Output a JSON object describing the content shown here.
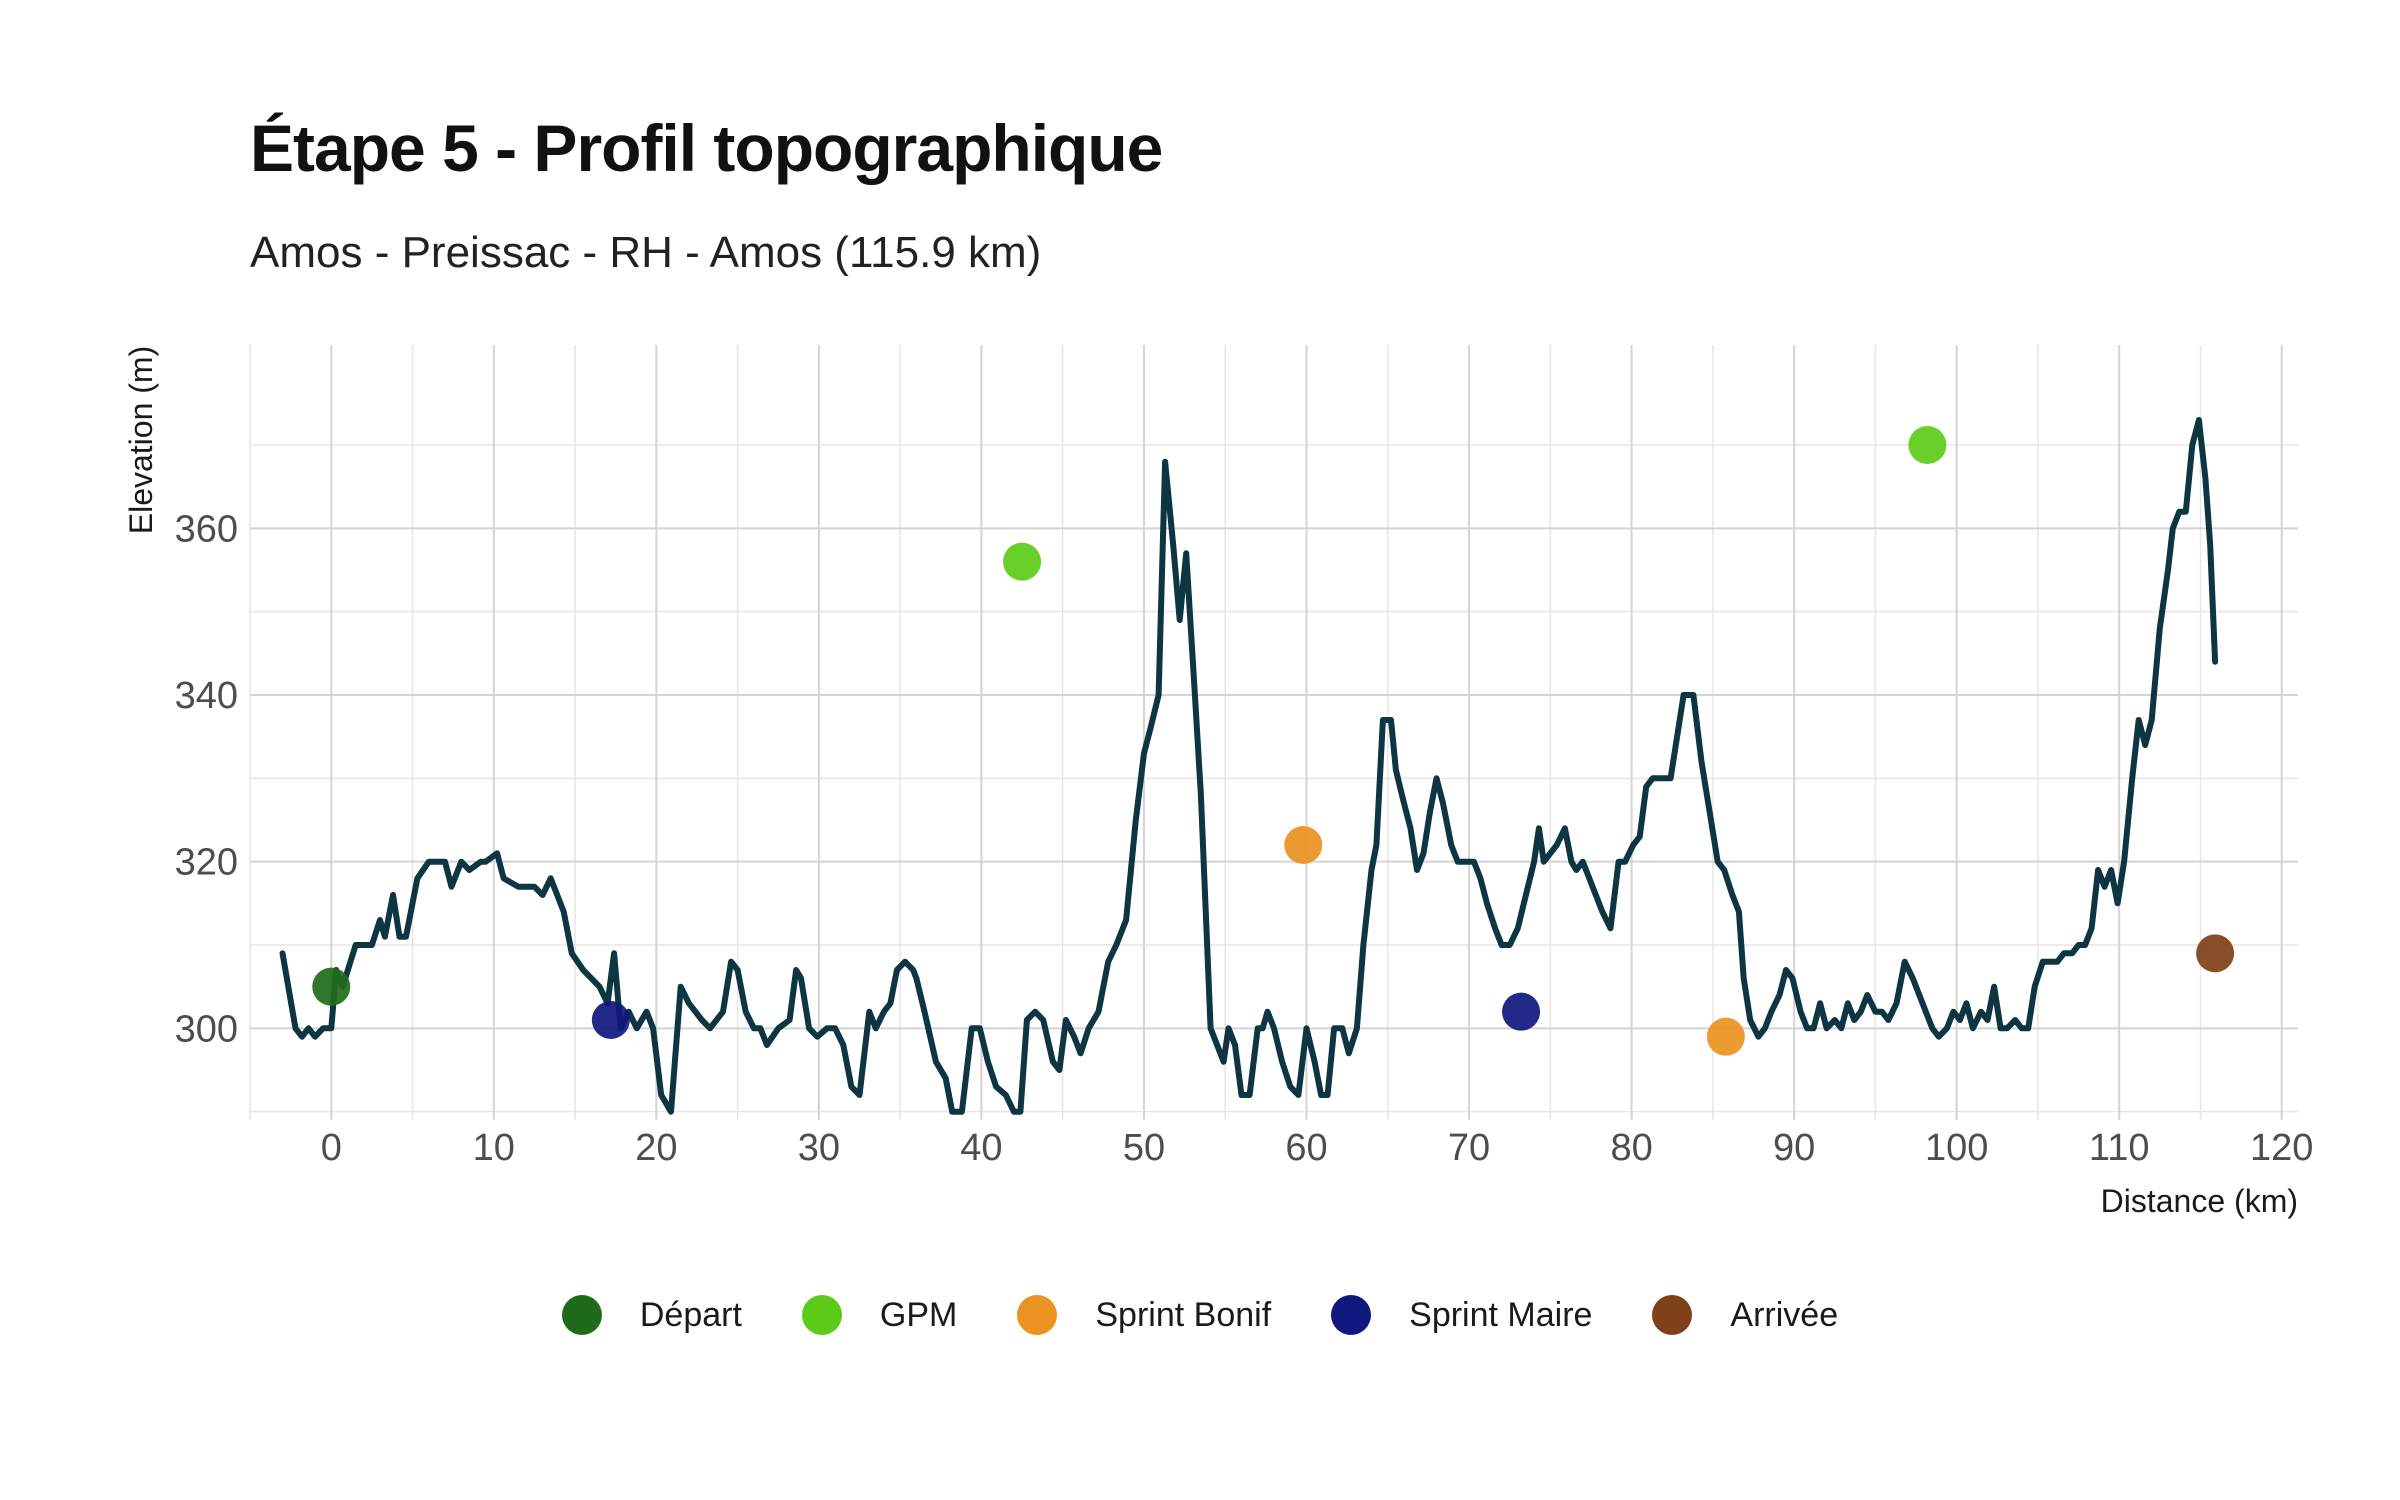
{
  "title": "Étape 5 - Profil topographique",
  "subtitle": "Amos - Preissac - RH - Amos (115.9 km)",
  "chart_data": {
    "type": "line",
    "xlabel": "Distance (km)",
    "ylabel": "Elevation (m)",
    "xlim": [
      -5,
      121
    ],
    "ylim": [
      289,
      382
    ],
    "x_ticks": [
      0,
      10,
      20,
      30,
      40,
      50,
      60,
      70,
      80,
      90,
      100,
      110,
      120
    ],
    "y_ticks": [
      300,
      320,
      340,
      360
    ],
    "grid": true,
    "legend_position": "bottom",
    "line_color": "#0d3542",
    "profile": [
      [
        -3,
        309
      ],
      [
        -2.2,
        300
      ],
      [
        -1.8,
        299
      ],
      [
        -1.4,
        300
      ],
      [
        -1,
        299
      ],
      [
        -0.5,
        300
      ],
      [
        0,
        300
      ],
      [
        0.3,
        307
      ],
      [
        0.7,
        305
      ],
      [
        1.5,
        310
      ],
      [
        2.5,
        310
      ],
      [
        3,
        313
      ],
      [
        3.3,
        311
      ],
      [
        3.8,
        316
      ],
      [
        4.2,
        311
      ],
      [
        4.6,
        311
      ],
      [
        5.3,
        318
      ],
      [
        6,
        320
      ],
      [
        7,
        320
      ],
      [
        7.4,
        317
      ],
      [
        8,
        320
      ],
      [
        8.5,
        319
      ],
      [
        9.2,
        320
      ],
      [
        9.5,
        320
      ],
      [
        10.2,
        321
      ],
      [
        10.6,
        318
      ],
      [
        11.5,
        317
      ],
      [
        12.5,
        317
      ],
      [
        13,
        316
      ],
      [
        13.5,
        318
      ],
      [
        14.3,
        314
      ],
      [
        14.8,
        309
      ],
      [
        15.5,
        307
      ],
      [
        16.5,
        305
      ],
      [
        17,
        303
      ],
      [
        17.4,
        309
      ],
      [
        17.8,
        300
      ],
      [
        18.3,
        302
      ],
      [
        18.8,
        300
      ],
      [
        19.4,
        302
      ],
      [
        19.8,
        300
      ],
      [
        20.3,
        292
      ],
      [
        20.9,
        290
      ],
      [
        21.5,
        305
      ],
      [
        22,
        303
      ],
      [
        22.8,
        301
      ],
      [
        23.3,
        300
      ],
      [
        24.1,
        302
      ],
      [
        24.6,
        308
      ],
      [
        25,
        307
      ],
      [
        25.5,
        302
      ],
      [
        26,
        300
      ],
      [
        26.4,
        300
      ],
      [
        26.8,
        298
      ],
      [
        27.5,
        300
      ],
      [
        28.2,
        301
      ],
      [
        28.6,
        307
      ],
      [
        28.9,
        306
      ],
      [
        29.4,
        300
      ],
      [
        29.9,
        299
      ],
      [
        30.5,
        300
      ],
      [
        31,
        300
      ],
      [
        31.5,
        298
      ],
      [
        32,
        293
      ],
      [
        32.5,
        292
      ],
      [
        33.1,
        302
      ],
      [
        33.5,
        300
      ],
      [
        34,
        302
      ],
      [
        34.4,
        303
      ],
      [
        34.8,
        307
      ],
      [
        35.3,
        308
      ],
      [
        35.8,
        307
      ],
      [
        36,
        306
      ],
      [
        36.5,
        302
      ],
      [
        37.2,
        296
      ],
      [
        37.8,
        294
      ],
      [
        38.2,
        290
      ],
      [
        38.8,
        290
      ],
      [
        39.4,
        300
      ],
      [
        39.9,
        300
      ],
      [
        40.4,
        296
      ],
      [
        40.9,
        293
      ],
      [
        41.5,
        292
      ],
      [
        42,
        290
      ],
      [
        42.4,
        290
      ],
      [
        42.8,
        301
      ],
      [
        43.3,
        302
      ],
      [
        43.8,
        301
      ],
      [
        44.4,
        296
      ],
      [
        44.8,
        295
      ],
      [
        45.2,
        301
      ],
      [
        45.7,
        299
      ],
      [
        46.1,
        297
      ],
      [
        46.6,
        300
      ],
      [
        47.2,
        302
      ],
      [
        47.8,
        308
      ],
      [
        48.3,
        310
      ],
      [
        48.9,
        313
      ],
      [
        49.5,
        325
      ],
      [
        50,
        333
      ],
      [
        50.4,
        336
      ],
      [
        50.9,
        340
      ],
      [
        51.3,
        368
      ],
      [
        51.8,
        358
      ],
      [
        52.2,
        349
      ],
      [
        52.6,
        357
      ],
      [
        53.1,
        341
      ],
      [
        53.5,
        328
      ],
      [
        54.1,
        300
      ],
      [
        54.5,
        298
      ],
      [
        54.9,
        296
      ],
      [
        55.2,
        300
      ],
      [
        55.6,
        298
      ],
      [
        56,
        292
      ],
      [
        56.5,
        292
      ],
      [
        57,
        300
      ],
      [
        57.3,
        300
      ],
      [
        57.6,
        302
      ],
      [
        58,
        300
      ],
      [
        58.5,
        296
      ],
      [
        59,
        293
      ],
      [
        59.5,
        292
      ],
      [
        60,
        300
      ],
      [
        60.5,
        296
      ],
      [
        60.9,
        292
      ],
      [
        61.3,
        292
      ],
      [
        61.7,
        300
      ],
      [
        62.2,
        300
      ],
      [
        62.6,
        297
      ],
      [
        63.1,
        300
      ],
      [
        63.5,
        310
      ],
      [
        64,
        319
      ],
      [
        64.3,
        322
      ],
      [
        64.7,
        337
      ],
      [
        65.2,
        337
      ],
      [
        65.5,
        331
      ],
      [
        66,
        327
      ],
      [
        66.4,
        324
      ],
      [
        66.8,
        319
      ],
      [
        67.2,
        321
      ],
      [
        67.6,
        326
      ],
      [
        68,
        330
      ],
      [
        68.4,
        327
      ],
      [
        68.9,
        322
      ],
      [
        69.3,
        320
      ],
      [
        69.8,
        320
      ],
      [
        70.3,
        320
      ],
      [
        70.7,
        318
      ],
      [
        71.1,
        315
      ],
      [
        71.6,
        312
      ],
      [
        72,
        310
      ],
      [
        72.5,
        310
      ],
      [
        73,
        312
      ],
      [
        73.5,
        316
      ],
      [
        74,
        320
      ],
      [
        74.3,
        324
      ],
      [
        74.6,
        320
      ],
      [
        75,
        321
      ],
      [
        75.4,
        322
      ],
      [
        75.9,
        324
      ],
      [
        76.3,
        320
      ],
      [
        76.6,
        319
      ],
      [
        77,
        320
      ],
      [
        77.4,
        318
      ],
      [
        77.8,
        316
      ],
      [
        78.2,
        314
      ],
      [
        78.7,
        312
      ],
      [
        79.2,
        320
      ],
      [
        79.6,
        320
      ],
      [
        80.1,
        322
      ],
      [
        80.5,
        323
      ],
      [
        80.9,
        329
      ],
      [
        81.3,
        330
      ],
      [
        81.8,
        330
      ],
      [
        82.4,
        330
      ],
      [
        82.8,
        335
      ],
      [
        83.2,
        340
      ],
      [
        83.8,
        340
      ],
      [
        84.3,
        332
      ],
      [
        84.8,
        326
      ],
      [
        85.3,
        320
      ],
      [
        85.7,
        319
      ],
      [
        86.2,
        316
      ],
      [
        86.6,
        314
      ],
      [
        86.9,
        306
      ],
      [
        87.3,
        301
      ],
      [
        87.8,
        299
      ],
      [
        88.2,
        300
      ],
      [
        88.6,
        302
      ],
      [
        89.1,
        304
      ],
      [
        89.5,
        307
      ],
      [
        89.9,
        306
      ],
      [
        90.4,
        302
      ],
      [
        90.8,
        300
      ],
      [
        91.2,
        300
      ],
      [
        91.6,
        303
      ],
      [
        92,
        300
      ],
      [
        92.5,
        301
      ],
      [
        92.9,
        300
      ],
      [
        93.3,
        303
      ],
      [
        93.7,
        301
      ],
      [
        94.1,
        302
      ],
      [
        94.5,
        304
      ],
      [
        95,
        302
      ],
      [
        95.4,
        302
      ],
      [
        95.8,
        301
      ],
      [
        96.3,
        303
      ],
      [
        96.8,
        308
      ],
      [
        97.3,
        306
      ],
      [
        97.7,
        304
      ],
      [
        98.1,
        302
      ],
      [
        98.5,
        300
      ],
      [
        98.9,
        299
      ],
      [
        99.4,
        300
      ],
      [
        99.8,
        302
      ],
      [
        100.2,
        301
      ],
      [
        100.6,
        303
      ],
      [
        101,
        300
      ],
      [
        101.5,
        302
      ],
      [
        101.9,
        301
      ],
      [
        102.3,
        305
      ],
      [
        102.7,
        300
      ],
      [
        103.1,
        300
      ],
      [
        103.6,
        301
      ],
      [
        104,
        300
      ],
      [
        104.4,
        300
      ],
      [
        104.8,
        305
      ],
      [
        105.3,
        308
      ],
      [
        105.8,
        308
      ],
      [
        106.2,
        308
      ],
      [
        106.6,
        309
      ],
      [
        107.1,
        309
      ],
      [
        107.5,
        310
      ],
      [
        107.9,
        310
      ],
      [
        108.3,
        312
      ],
      [
        108.7,
        319
      ],
      [
        109.1,
        317
      ],
      [
        109.5,
        319
      ],
      [
        109.9,
        315
      ],
      [
        110.3,
        320
      ],
      [
        110.8,
        330
      ],
      [
        111.2,
        337
      ],
      [
        111.6,
        334
      ],
      [
        112,
        337
      ],
      [
        112.5,
        348
      ],
      [
        113,
        355
      ],
      [
        113.3,
        360
      ],
      [
        113.7,
        362
      ],
      [
        114.1,
        362
      ],
      [
        114.5,
        370
      ],
      [
        114.9,
        373
      ],
      [
        115.3,
        366
      ],
      [
        115.6,
        358
      ],
      [
        115.9,
        344
      ]
    ],
    "series": [
      {
        "name": "Départ",
        "color": "#1f6b1a",
        "points": [
          [
            0,
            305
          ]
        ]
      },
      {
        "name": "GPM",
        "color": "#5ccb17",
        "points": [
          [
            42.5,
            356
          ],
          [
            98.2,
            370
          ]
        ]
      },
      {
        "name": "Sprint Bonif",
        "color": "#ea9320",
        "points": [
          [
            59.8,
            322
          ],
          [
            85.8,
            299
          ]
        ]
      },
      {
        "name": "Sprint Maire",
        "color": "#10177f",
        "points": [
          [
            17.2,
            301
          ],
          [
            73.2,
            302
          ]
        ]
      },
      {
        "name": "Arrivée",
        "color": "#7f4019",
        "points": [
          [
            115.9,
            309
          ]
        ]
      }
    ]
  }
}
